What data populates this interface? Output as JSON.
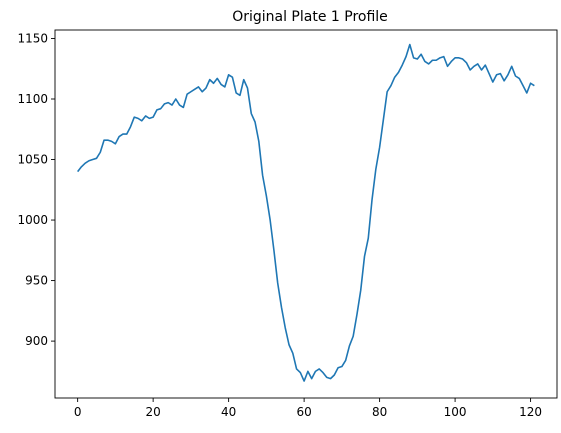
{
  "chart_data": {
    "type": "line",
    "title": "Original Plate 1 Profile",
    "xlabel": "",
    "ylabel": "",
    "xlim": [
      -6,
      127
    ],
    "ylim": [
      853,
      1157
    ],
    "xticks": [
      0,
      20,
      40,
      60,
      80,
      100,
      120
    ],
    "yticks": [
      900,
      950,
      1000,
      1050,
      1100,
      1150
    ],
    "grid": false,
    "line_color": "#1f77b4",
    "series": [
      {
        "x": [
          0,
          1,
          2,
          3,
          4,
          5,
          6,
          7,
          8,
          9,
          10,
          11,
          12,
          13,
          14,
          15,
          16,
          17,
          18,
          19,
          20,
          21,
          22,
          23,
          24,
          25,
          26,
          27,
          28,
          29,
          30,
          31,
          32,
          33,
          34,
          35,
          36,
          37,
          38,
          39,
          40,
          41,
          42,
          43,
          44,
          45,
          46,
          47,
          48,
          49,
          50,
          51,
          52,
          53,
          54,
          55,
          56,
          57,
          58,
          59,
          60,
          61,
          62,
          63,
          64,
          65,
          66,
          67,
          68,
          69,
          70,
          71,
          72,
          73,
          74,
          75,
          76,
          77,
          78,
          79,
          80,
          81,
          82,
          83,
          84,
          85,
          86,
          87,
          88,
          89,
          90,
          91,
          92,
          93,
          94,
          95,
          96,
          97,
          98,
          99,
          100,
          101,
          102,
          103,
          104,
          105,
          106,
          107,
          108,
          109,
          110,
          111,
          112,
          113,
          114,
          115,
          116,
          117,
          118,
          119,
          120,
          121
        ],
        "values": [
          1040,
          1044,
          1047,
          1049,
          1050,
          1051,
          1056,
          1066,
          1066,
          1065,
          1063,
          1069,
          1071,
          1071,
          1077,
          1085,
          1084,
          1082,
          1086,
          1084,
          1085,
          1091,
          1092,
          1096,
          1097,
          1095,
          1100,
          1095,
          1093,
          1104,
          1106,
          1108,
          1110,
          1106,
          1109,
          1116,
          1113,
          1117,
          1112,
          1110,
          1120,
          1118,
          1105,
          1103,
          1116,
          1109,
          1088,
          1081,
          1065,
          1037,
          1020,
          1000,
          975,
          948,
          928,
          911,
          897,
          890,
          877,
          874,
          867,
          875,
          869,
          875,
          877,
          874,
          870,
          869,
          872,
          878,
          879,
          884,
          896,
          904,
          922,
          942,
          970,
          985,
          1017,
          1042,
          1060,
          1083,
          1106,
          1111,
          1118,
          1122,
          1128,
          1135,
          1145,
          1134,
          1133,
          1137,
          1131,
          1129,
          1132,
          1132,
          1134,
          1135,
          1127,
          1131,
          1134,
          1134,
          1133,
          1130,
          1124,
          1127,
          1129,
          1124,
          1128,
          1121,
          1114,
          1120,
          1121,
          1115,
          1120,
          1127,
          1119,
          1117,
          1111,
          1105,
          1113,
          1111
        ]
      }
    ]
  }
}
